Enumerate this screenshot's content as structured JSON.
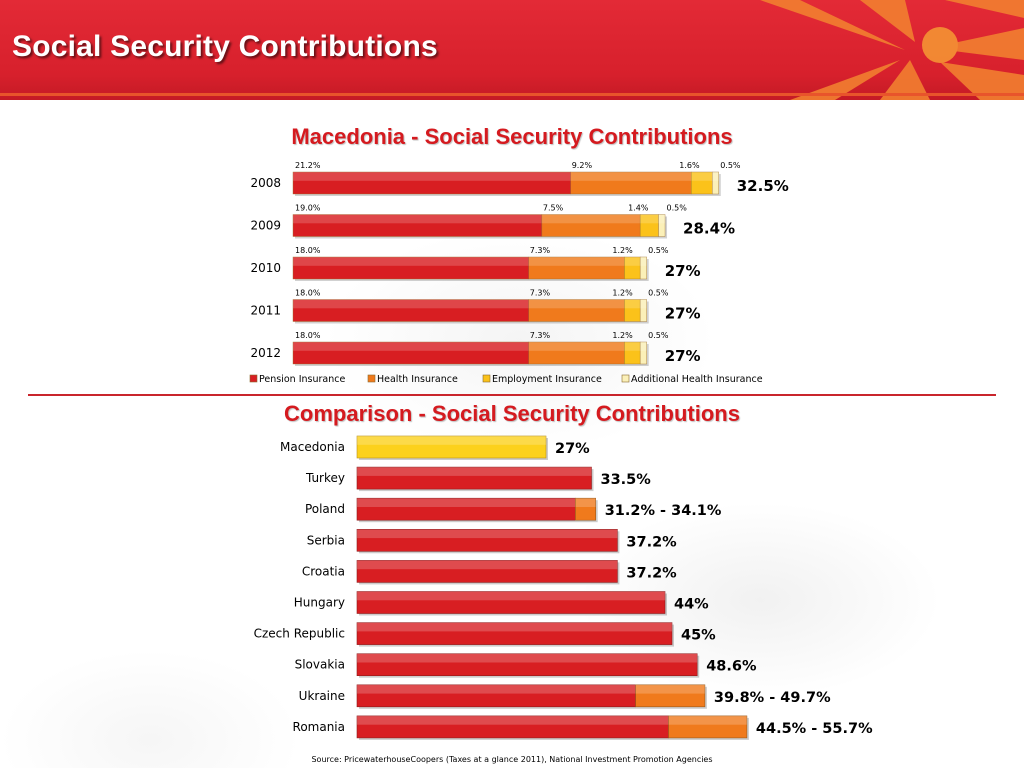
{
  "header": {
    "title": "Social Security Contributions"
  },
  "colors": {
    "banner": "#d7202c",
    "title_red": "#d51a1f",
    "pension": "#d81e22",
    "health": "#f07a1c",
    "employment": "#fbc21a",
    "additional": "#fbf0b8",
    "macedonia_bar": "#fcd11c"
  },
  "chart_data": [
    {
      "type": "bar",
      "orientation": "horizontal",
      "stacked": true,
      "title": "Macedonia - Social Security Contributions",
      "categories": [
        "2008",
        "2009",
        "2010",
        "2011",
        "2012"
      ],
      "series": [
        {
          "name": "Pension Insurance",
          "values": [
            21.2,
            19.0,
            18.0,
            18.0,
            18.0
          ],
          "labels": [
            "21.2%",
            "19.0%",
            "18.0%",
            "18.0%",
            "18.0%"
          ]
        },
        {
          "name": "Health Insurance",
          "values": [
            9.2,
            7.5,
            7.3,
            7.3,
            7.3
          ],
          "labels": [
            "9.2%",
            "7.5%",
            "7.3%",
            "7.3%",
            "7.3%"
          ]
        },
        {
          "name": "Employment Insurance",
          "values": [
            1.6,
            1.4,
            1.2,
            1.2,
            1.2
          ],
          "labels": [
            "1.6%",
            "1.4%",
            "1.2%",
            "1.2%",
            "1.2%"
          ]
        },
        {
          "name": "Additional Health Insurance",
          "values": [
            0.5,
            0.5,
            0.5,
            0.5,
            0.5
          ],
          "labels": [
            "0.5%",
            "0.5%",
            "0.5%",
            "0.5%",
            "0.5%"
          ]
        }
      ],
      "totals": [
        "32.5%",
        "28.4%",
        "27%",
        "27%",
        "27%"
      ],
      "legend_position": "bottom"
    },
    {
      "type": "bar",
      "orientation": "horizontal",
      "title": "Comparison - Social Security Contributions",
      "categories": [
        "Macedonia",
        "Turkey",
        "Poland",
        "Serbia",
        "Croatia",
        "Hungary",
        "Czech Republic",
        "Slovakia",
        "Ukraine",
        "Romania"
      ],
      "min_values": [
        27,
        33.5,
        31.2,
        37.2,
        37.2,
        44,
        45,
        48.6,
        39.8,
        44.5
      ],
      "max_values": [
        27,
        33.5,
        34.1,
        37.2,
        37.2,
        44,
        45,
        48.6,
        49.7,
        55.7
      ],
      "labels": [
        "27%",
        "33.5%",
        "31.2%  - 34.1%",
        "37.2%",
        "37.2%",
        "44%",
        "45%",
        "48.6%",
        "39.8% - 49.7%",
        "44.5% - 55.7%"
      ]
    }
  ],
  "source": "Source: PricewaterhouseCoopers (Taxes at a glance 2011), National Investment Promotion Agencies"
}
